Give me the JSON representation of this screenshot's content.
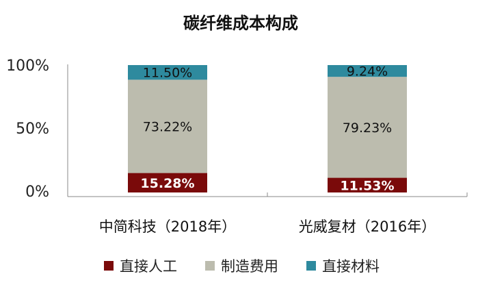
{
  "chart_data": {
    "type": "bar",
    "stacked": true,
    "title": "碳纤维成本构成",
    "categories": [
      "中简科技（2018年）",
      "光威复材（2016年）"
    ],
    "series": [
      {
        "name": "直接人工",
        "values": [
          15.28,
          11.53
        ],
        "labels": [
          "15.28%",
          "11.53%"
        ],
        "color": "#7a0a0a"
      },
      {
        "name": "制造费用",
        "values": [
          73.22,
          79.23
        ],
        "labels": [
          "73.22%",
          "79.23%"
        ],
        "color": "#bcbcae"
      },
      {
        "name": "直接材料",
        "values": [
          11.5,
          9.24
        ],
        "labels": [
          "11.50%",
          "9.24%"
        ],
        "color": "#2e8a9e"
      }
    ],
    "ylim": [
      0,
      100
    ],
    "yticks": [
      "0%",
      "50%",
      "100%"
    ],
    "legend_position": "bottom",
    "grid": false
  }
}
